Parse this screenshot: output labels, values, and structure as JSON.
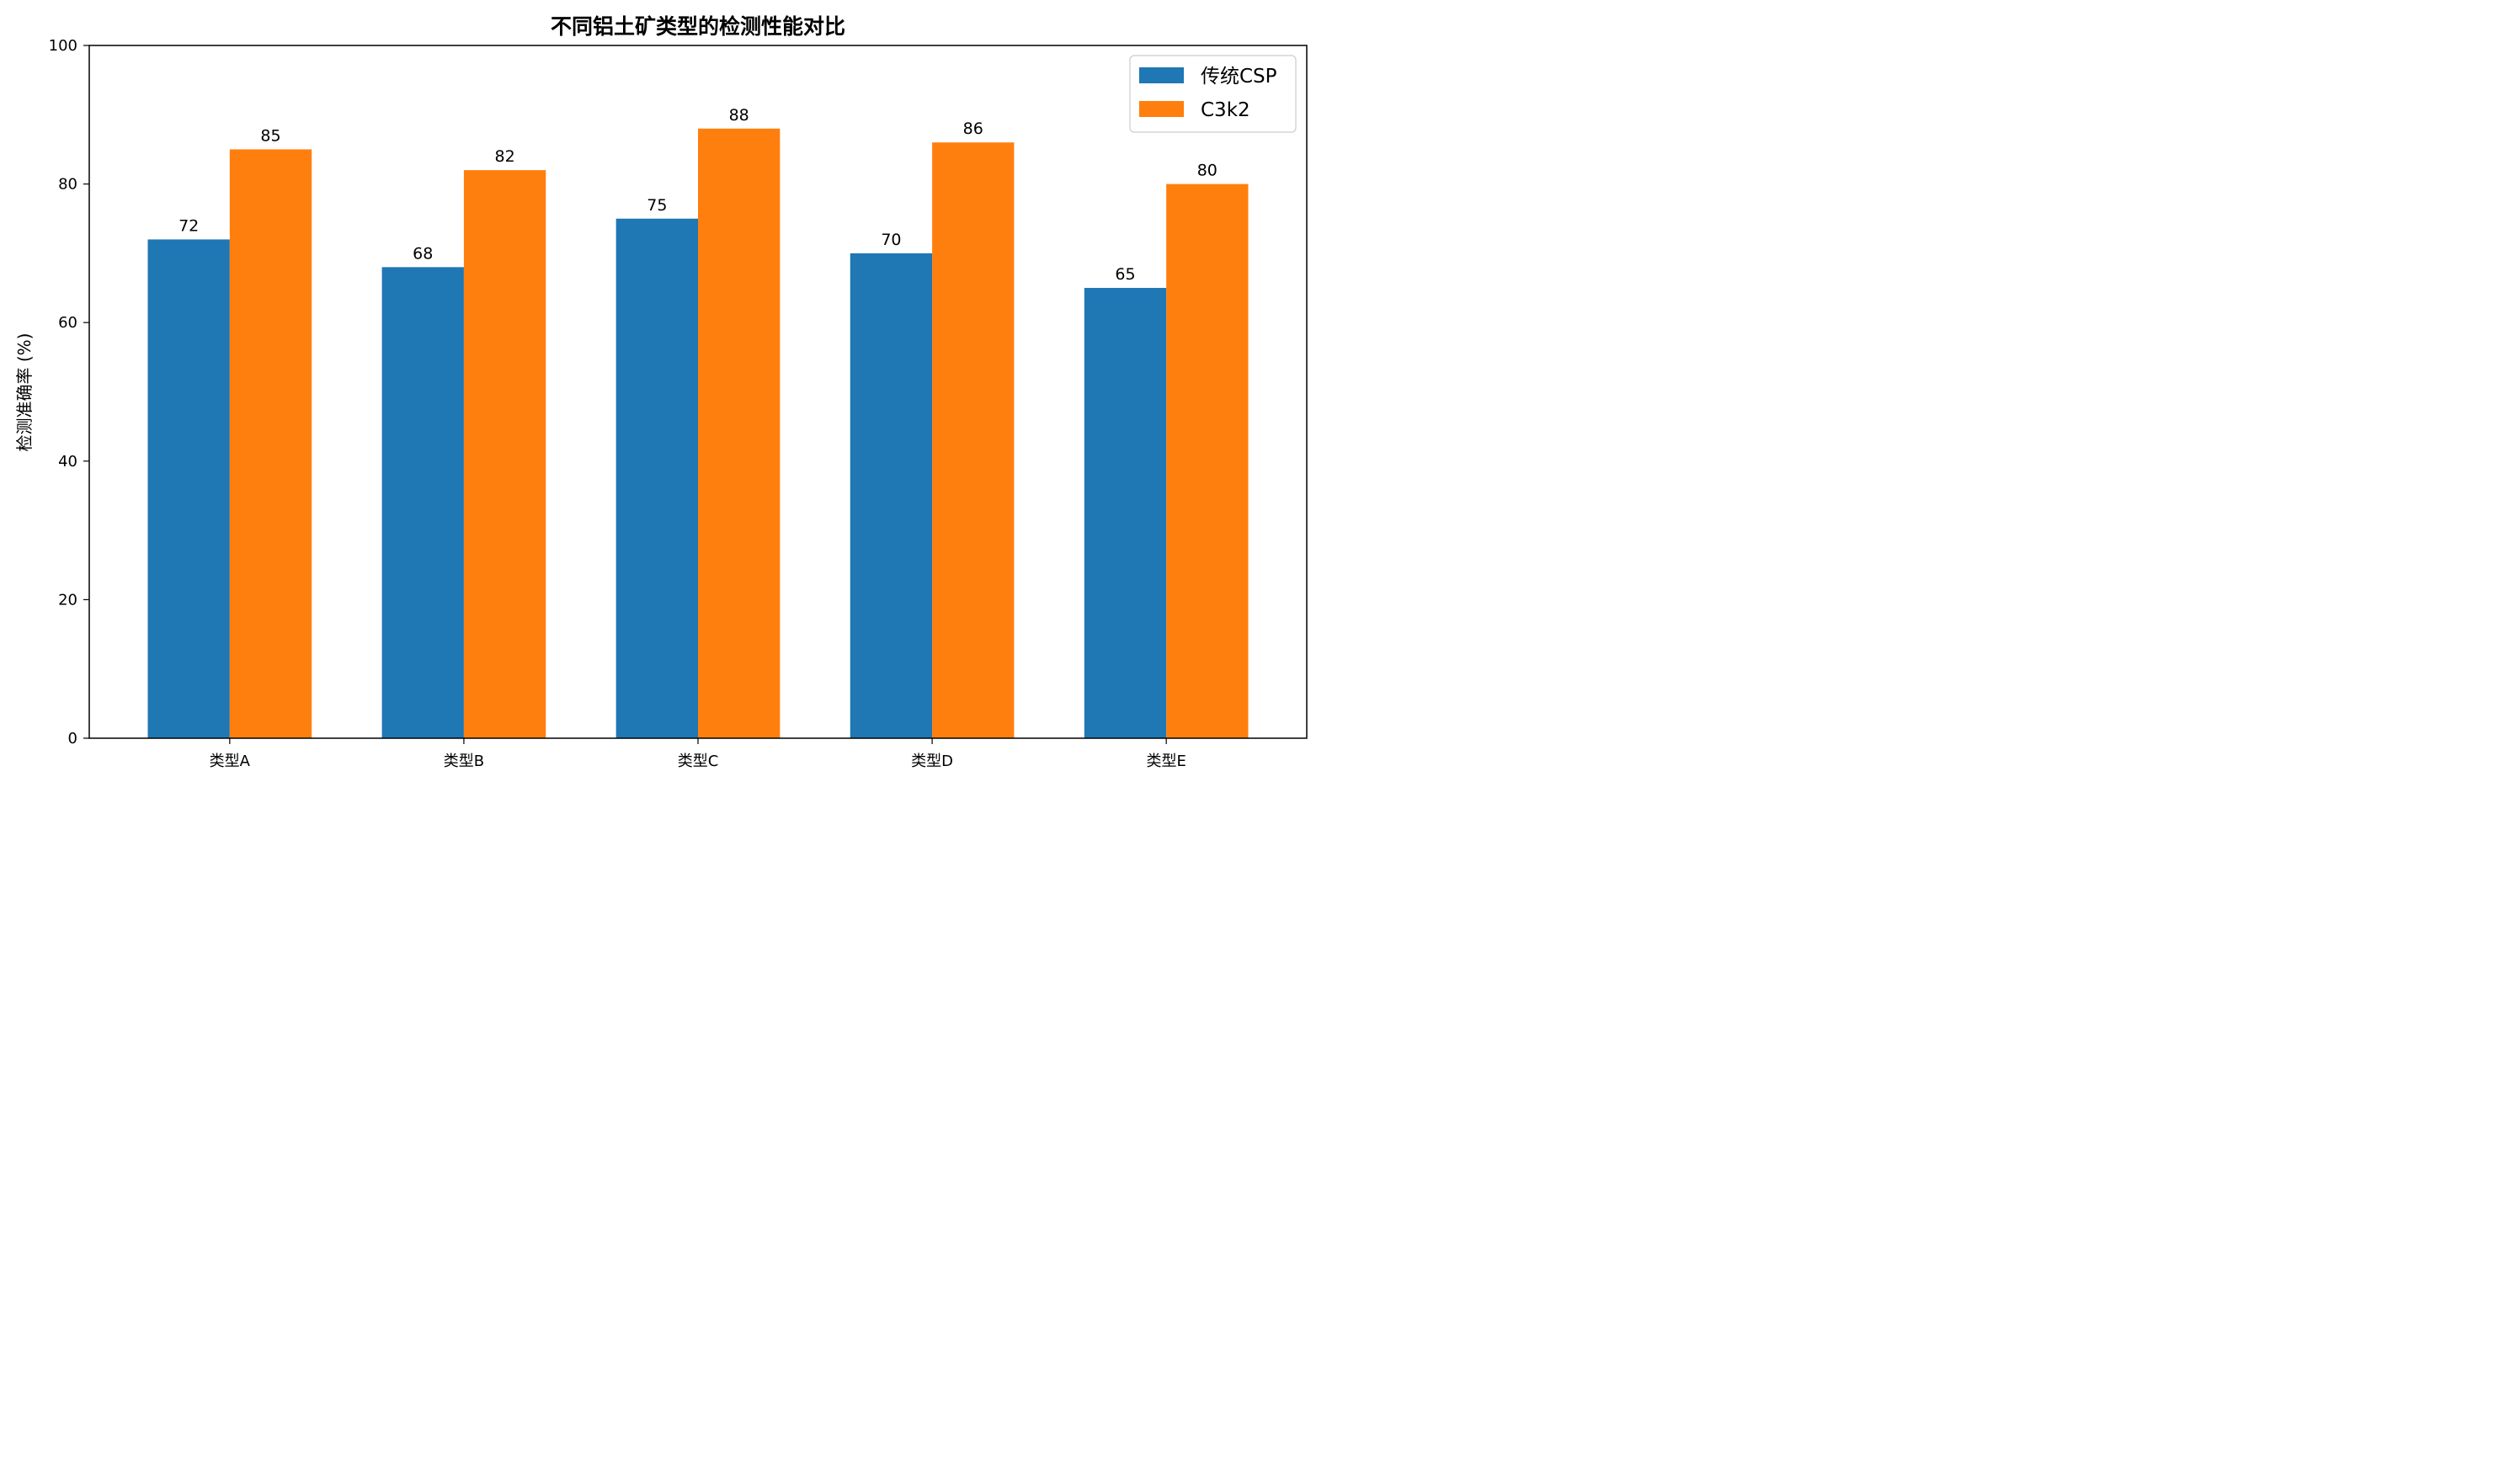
{
  "chart_data": {
    "type": "bar",
    "title": "不同铝土矿类型的检测性能对比",
    "xlabel": "",
    "ylabel": "检测准确率 (%)",
    "categories": [
      "类型A",
      "类型B",
      "类型C",
      "类型D",
      "类型E"
    ],
    "series": [
      {
        "name": "传统CSP",
        "color": "#1f77b4",
        "values": [
          72,
          68,
          75,
          70,
          65
        ]
      },
      {
        "name": "C3k2",
        "color": "#ff7f0e",
        "values": [
          85,
          82,
          88,
          86,
          80
        ]
      }
    ],
    "ylim": [
      0,
      100
    ],
    "yticks": [
      "0",
      "20",
      "40",
      "60",
      "80",
      "100"
    ],
    "grid": false,
    "legend": "top-right"
  }
}
